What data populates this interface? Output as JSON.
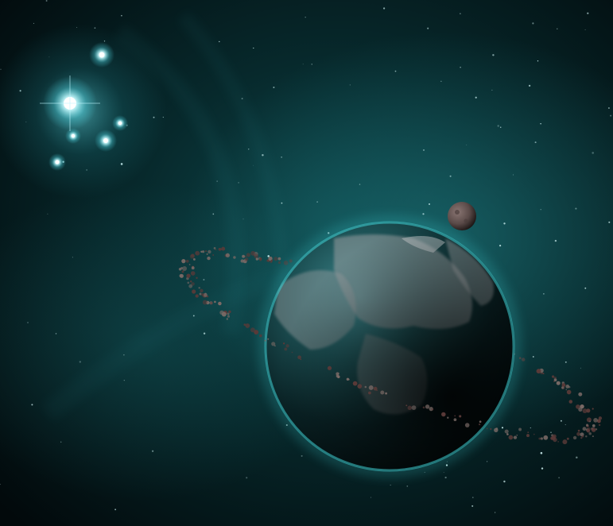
{
  "scene": {
    "subject": "space-scene",
    "palette": {
      "space_deep": "#02090b",
      "nebula_teal": "#0e4a4e",
      "nebula_glow": "#1f7a80",
      "planet_rim": "#3fd2d6",
      "planet_land": "#9a9ea0",
      "star_core": "#ffffff",
      "star_halo": "#6fe6f0",
      "moon": "#6b5a57",
      "asteroid": "#5a3a38"
    },
    "elements": [
      "star-cluster",
      "nebula-haze",
      "ringed-planet",
      "small-moon",
      "asteroid-ring",
      "starfield"
    ]
  }
}
